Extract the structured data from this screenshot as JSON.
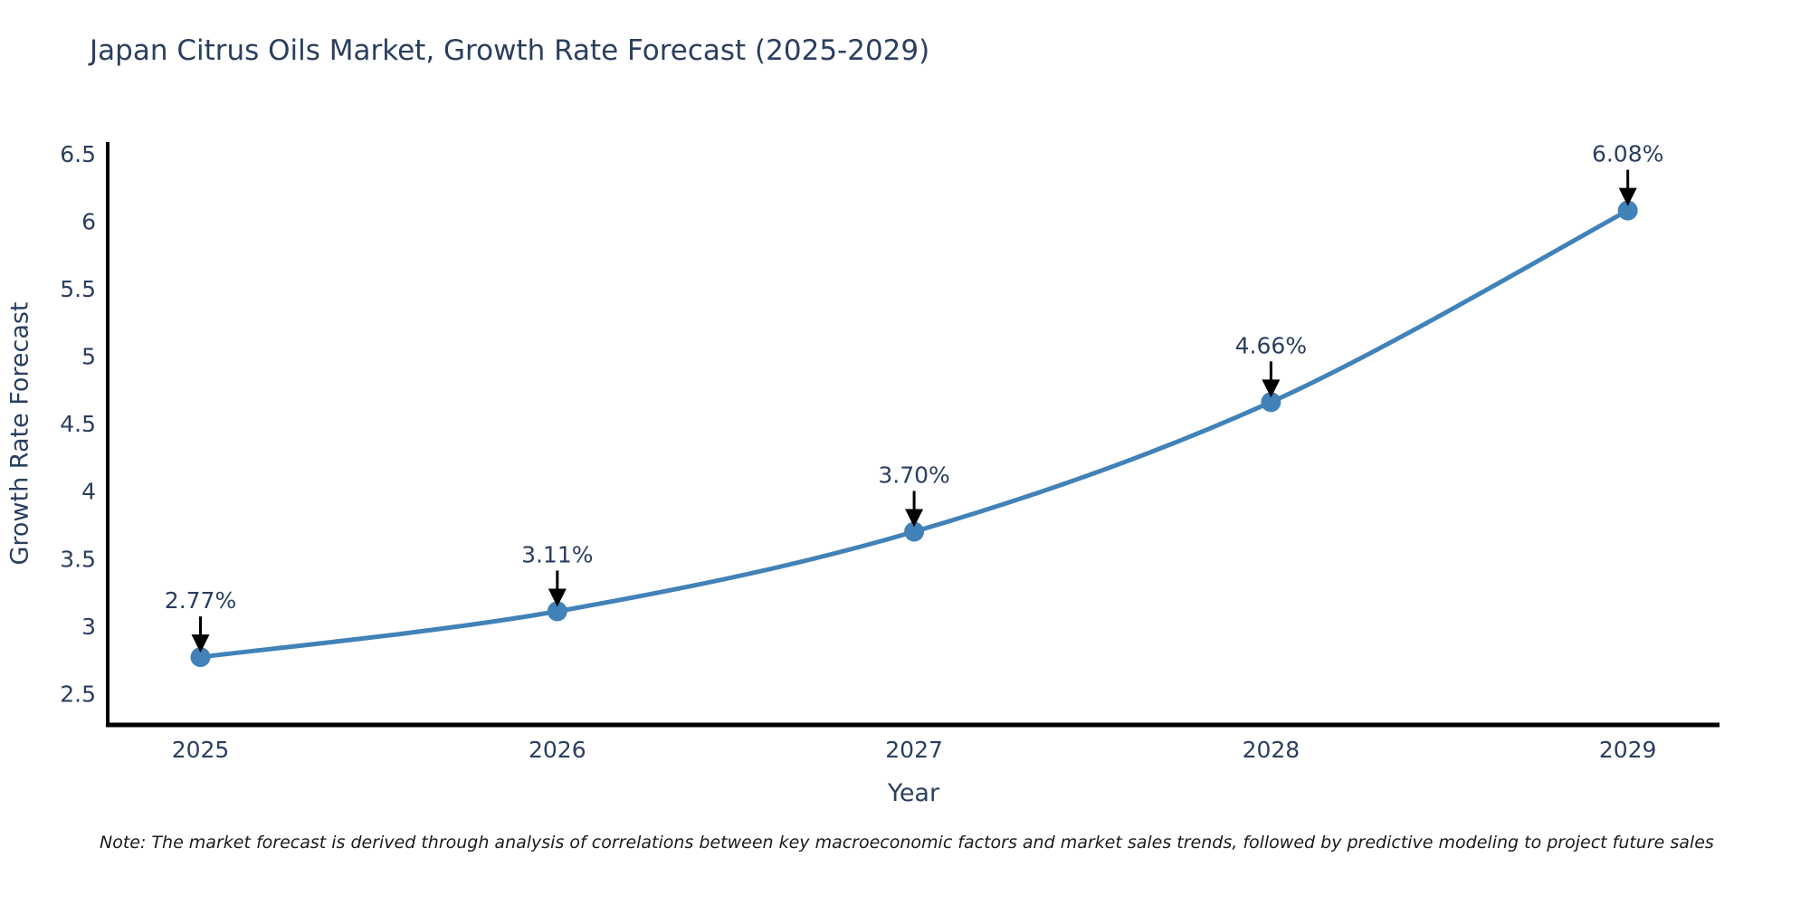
{
  "note": {
    "text": "Note: The market forecast is derived through analysis of correlations between key macroeconomic factors and market sales trends, followed by predictive modeling to project future sales"
  },
  "chart_data": {
    "type": "line",
    "title": "Japan Citrus Oils Market, Growth Rate Forecast (2025-2029)",
    "xlabel": "Year",
    "ylabel": "Growth Rate Forecast",
    "x": [
      2025,
      2026,
      2027,
      2028,
      2029
    ],
    "values": [
      2.77,
      3.11,
      3.7,
      4.66,
      6.08
    ],
    "point_labels": [
      "2.77%",
      "3.11%",
      "3.70%",
      "4.66%",
      "6.08%"
    ],
    "xtick_labels": [
      "2025",
      "2026",
      "2027",
      "2028",
      "2029"
    ],
    "yticks": [
      2.5,
      3,
      3.5,
      4,
      4.5,
      5,
      5.5,
      6,
      6.5
    ],
    "ytick_labels": [
      "2.5",
      "3",
      "3.5",
      "4",
      "4.5",
      "5",
      "5.5",
      "6",
      "6.5"
    ],
    "xlim": [
      2024.74,
      2029.257
    ],
    "ylim": [
      2.268,
      6.587
    ],
    "grid": false,
    "legend": "none",
    "line_shape": "spline",
    "colors": {
      "line": "#4182b8",
      "marker": "#4182b8",
      "axis": "#000000",
      "tick_text": "#2a3f5f",
      "title_text": "#2a3f5f",
      "annotation_text": "#2a3f5f",
      "annotation_arrow": "#000000",
      "background": "#ffffff"
    }
  }
}
